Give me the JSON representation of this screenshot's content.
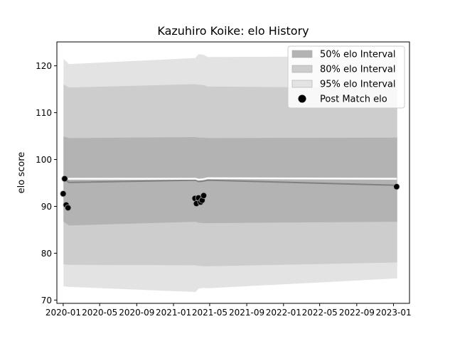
{
  "chart_data": {
    "type": "line",
    "title": "Kazuhiro Koike: elo History",
    "xlabel": "",
    "ylabel": "elo score",
    "xlim": [
      "2019-12-11",
      "2023-02-23"
    ],
    "ylim": [
      69.3,
      125.1
    ],
    "x_ticks": [
      "2020-01",
      "2020-05",
      "2020-09",
      "2021-01",
      "2021-05",
      "2021-09",
      "2022-01",
      "2022-05",
      "2022-09",
      "2023-01"
    ],
    "y_ticks": [
      70,
      80,
      90,
      100,
      110,
      120
    ],
    "grid": false,
    "legend": {
      "placement": "top-right",
      "entries": [
        "50% elo Interval",
        "80% elo Interval",
        "95% elo Interval",
        "Post Match elo"
      ]
    },
    "series": [
      {
        "name": "95% elo Interval",
        "kind": "band",
        "color": "#e3e3e3",
        "x": [
          "2020-01-03",
          "2020-01-20",
          "2021-03-15",
          "2021-03-25",
          "2021-04-10",
          "2021-04-25",
          "2023-01-12"
        ],
        "upper": [
          121.3,
          120.3,
          121.6,
          122.4,
          122.3,
          121.8,
          122.0
        ],
        "lower": [
          73.0,
          72.9,
          71.8,
          72.5,
          72.7,
          72.6,
          74.7
        ]
      },
      {
        "name": "80% elo Interval",
        "kind": "band",
        "color": "#cdcdcd",
        "x": [
          "2020-01-03",
          "2020-01-20",
          "2021-03-15",
          "2021-03-25",
          "2021-04-10",
          "2021-04-25",
          "2023-01-12"
        ],
        "upper": [
          115.9,
          115.3,
          116.0,
          115.9,
          115.8,
          115.5,
          115.2
        ],
        "lower": [
          77.7,
          77.6,
          77.5,
          77.4,
          77.3,
          77.3,
          78.1
        ]
      },
      {
        "name": "50% elo Interval",
        "kind": "band",
        "color": "#b3b3b3",
        "x": [
          "2020-01-03",
          "2020-01-20",
          "2021-03-15",
          "2021-03-25",
          "2021-04-10",
          "2021-04-25",
          "2023-01-12"
        ],
        "upper": [
          104.8,
          104.5,
          104.7,
          104.6,
          104.6,
          104.5,
          104.6
        ],
        "lower": [
          86.8,
          86.0,
          86.8,
          86.6,
          86.5,
          86.5,
          86.8
        ]
      },
      {
        "name": "",
        "kind": "line",
        "color": "#808080",
        "x": [
          "2020-01-03",
          "2020-01-20",
          "2021-03-15",
          "2021-03-25",
          "2021-04-10",
          "2021-04-25",
          "2023-01-12"
        ],
        "y": [
          95.9,
          95.1,
          95.6,
          95.3,
          95.4,
          95.6,
          94.5
        ]
      },
      {
        "name": "",
        "kind": "line",
        "color": "#ffffff",
        "x": [
          "2020-01-03",
          "2020-01-20",
          "2021-03-15",
          "2021-03-25",
          "2021-04-10",
          "2021-04-25",
          "2023-01-12"
        ],
        "y": [
          95.9,
          95.9,
          95.9,
          95.7,
          95.8,
          96.0,
          95.9
        ]
      },
      {
        "name": "Post Match elo",
        "kind": "scatter",
        "color": "#000000",
        "x": [
          "2020-01-01",
          "2020-01-06",
          "2020-01-11",
          "2020-01-17",
          "2021-03-13",
          "2021-03-18",
          "2021-03-25",
          "2021-04-01",
          "2021-04-06",
          "2021-04-11",
          "2023-01-11"
        ],
        "y": [
          92.7,
          95.9,
          90.3,
          89.7,
          91.7,
          90.6,
          91.8,
          90.9,
          91.3,
          92.3,
          94.2
        ]
      }
    ]
  }
}
